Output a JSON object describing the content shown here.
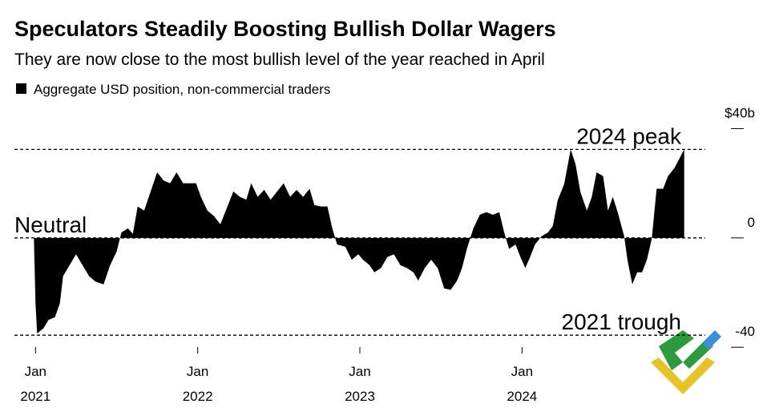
{
  "chart_data": {
    "type": "area",
    "title": "Speculators Steadily Boosting Bullish Dollar Wagers",
    "subtitle": "They are now close to the most bullish level of the year reached in April",
    "x": [
      2020.99,
      2021.0,
      2021.01,
      2021.05,
      2021.08,
      2021.12,
      2021.15,
      2021.17,
      2021.21,
      2021.25,
      2021.29,
      2021.33,
      2021.37,
      2021.42,
      2021.46,
      2021.5,
      2021.53,
      2021.57,
      2021.6,
      2021.63,
      2021.67,
      2021.71,
      2021.75,
      2021.79,
      2021.83,
      2021.87,
      2021.91,
      2021.95,
      2021.99,
      2022.02,
      2022.06,
      2022.1,
      2022.14,
      2022.18,
      2022.22,
      2022.26,
      2022.3,
      2022.33,
      2022.37,
      2022.41,
      2022.45,
      2022.49,
      2022.53,
      2022.57,
      2022.61,
      2022.65,
      2022.69,
      2022.72,
      2022.76,
      2022.8,
      2022.83,
      2022.86,
      2022.91,
      2022.95,
      2022.99,
      2023.02,
      2023.06,
      2023.09,
      2023.13,
      2023.17,
      2023.21,
      2023.25,
      2023.29,
      2023.33,
      2023.36,
      2023.4,
      2023.44,
      2023.48,
      2023.52,
      2023.56,
      2023.6,
      2023.63,
      2023.66,
      2023.7,
      2023.74,
      2023.78,
      2023.82,
      2023.86,
      2023.89,
      2023.92,
      2023.96,
      2023.99,
      2024.02,
      2024.05,
      2024.08,
      2024.12,
      2024.16,
      2024.19,
      2024.22,
      2024.26,
      2024.3,
      2024.33,
      2024.36,
      2024.4,
      2024.43,
      2024.46,
      2024.5,
      2024.53,
      2024.56,
      2024.59,
      2024.63,
      2024.65,
      2024.68,
      2024.71,
      2024.74,
      2024.77,
      2024.8,
      2024.83,
      2024.87,
      2024.9,
      2024.94,
      2024.97,
      2025.0
    ],
    "series": [
      {
        "name": "Aggregate USD position, non-commercial traders",
        "color": "#000000",
        "values": [
          0,
          -24,
          -35,
          -33,
          -30,
          -29,
          -24,
          -14,
          -10,
          -6,
          -10,
          -14,
          -16,
          -17,
          -10,
          -5,
          2,
          3.5,
          1.5,
          11.5,
          10,
          17,
          24,
          21,
          20,
          24,
          20,
          20,
          20,
          15,
          10,
          8,
          5,
          11,
          17,
          15,
          14,
          20,
          15,
          17.6,
          14,
          17,
          20,
          15,
          17.6,
          15,
          18,
          12,
          11.5,
          11.5,
          3.5,
          -2.4,
          -3.2,
          -8,
          -6,
          -8,
          -10,
          -12.6,
          -11,
          -7,
          -6,
          -10,
          -11,
          -12.6,
          -15.6,
          -11,
          -8,
          -11,
          -18.5,
          -19,
          -15.6,
          -11,
          -4,
          3.5,
          8.5,
          9.4,
          8.5,
          9.4,
          2,
          -4,
          -2.4,
          -7,
          -11,
          -7,
          -2.4,
          0.6,
          2,
          4.4,
          13.8,
          19.7,
          32.4,
          27,
          16.8,
          10,
          15,
          24,
          22.6,
          10,
          15,
          9.4,
          0.6,
          -8,
          -17,
          -12.6,
          -12.6,
          -8,
          -0.3,
          18,
          18,
          22.6,
          25.6,
          29,
          32.4
        ]
      }
    ],
    "annotations": [
      {
        "label": "2024 peak",
        "value": 32.4
      },
      {
        "label": "Neutral",
        "value": 0
      },
      {
        "label": "2021 trough",
        "value": -35.6
      }
    ],
    "xlim": [
      2020.87,
      2025.13
    ],
    "xticks": [
      {
        "value": 2021,
        "label": "Jan 2021"
      },
      {
        "value": 2022,
        "label": "Jan 2022"
      },
      {
        "value": 2023,
        "label": "Jan 2023"
      },
      {
        "value": 2024,
        "label": "Jan 2024"
      }
    ],
    "ylim": [
      -42,
      46
    ],
    "yticks": [
      {
        "value": 40,
        "label": "$40b"
      },
      0,
      -40
    ]
  }
}
